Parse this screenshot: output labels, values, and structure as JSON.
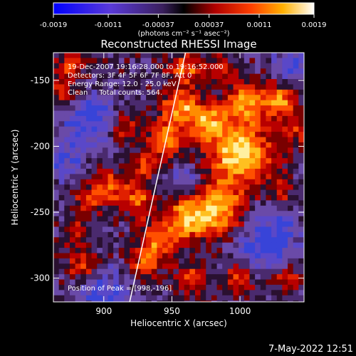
{
  "chart_data": {
    "type": "heatmap",
    "title": "Reconstructed RHESSI Image",
    "xlabel": "Heliocentric X (arcsec)",
    "ylabel": "Heliocentric Y (arcsec)",
    "xlim": [
      863,
      1047
    ],
    "ylim": [
      -318,
      -129
    ],
    "xticks": [
      900,
      950,
      1000
    ],
    "yticks": [
      -150,
      -200,
      -250,
      -300
    ],
    "colorbar": {
      "min": -0.0019,
      "max": 0.0019,
      "ticks": [
        "-0.0019",
        "-0.0011",
        "-0.00037",
        "0.00037",
        "0.0011",
        "0.0019"
      ],
      "unit": "(photons cm⁻² s⁻¹ asec⁻²)",
      "colormap": "blue-purple-black-red-orange-yellow-white"
    },
    "annotations": [
      "19-Dec-2007 19:16:28.000 to 19:16:52.000",
      "Detectors: 3F 4F 5F 6F 7F 8F, Att 0",
      "Energy Range: 12.0 - 25.0 keV",
      "Clean     Total counts: 564."
    ],
    "peak_label": "Position of Peak = [998,-196]",
    "peak": [
      998,
      -196
    ],
    "limb_line": [
      [
        919,
        -318
      ],
      [
        960,
        -129
      ]
    ],
    "grid": false
  },
  "footer": {
    "timestamp": "7-May-2022 12:51"
  },
  "colors": {
    "background": "#000000",
    "text": "#ffffff",
    "limb": "#ffffff"
  }
}
